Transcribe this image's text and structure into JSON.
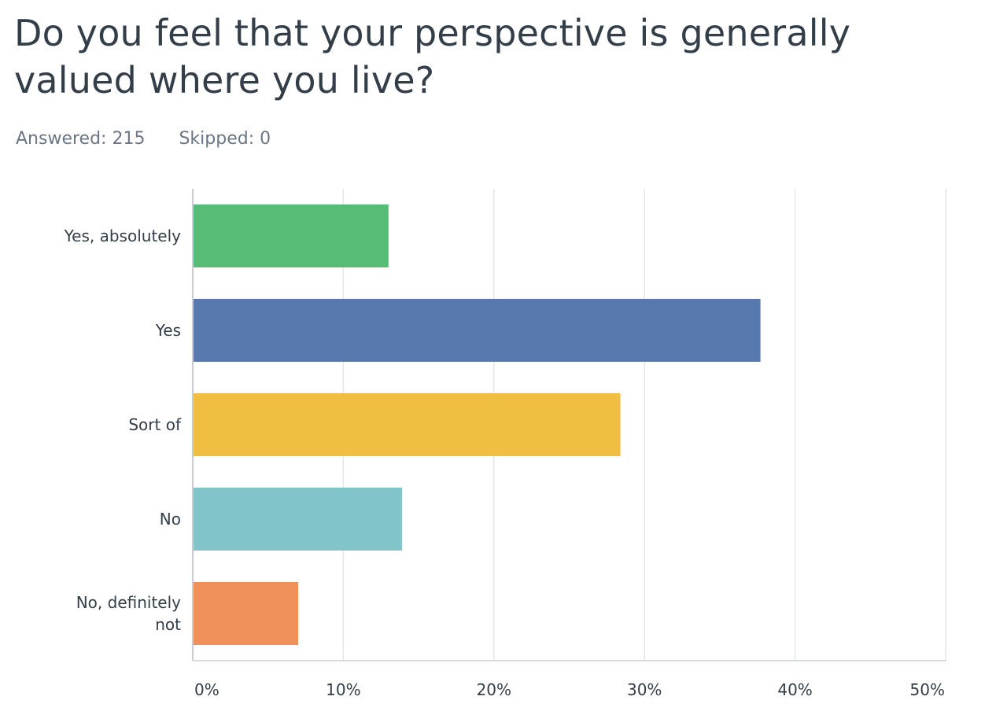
{
  "question": {
    "title": "Do you feel that your perspective is generally valued where you live?"
  },
  "stats": {
    "answered_label": "Answered: 215",
    "skipped_label": "Skipped: 0"
  },
  "chart_data": {
    "type": "bar",
    "orientation": "horizontal",
    "categories": [
      "Yes, absolutely",
      "Yes",
      "Sort of",
      "No",
      "No, definitely not"
    ],
    "category_lines": [
      [
        "Yes, absolutely"
      ],
      [
        "Yes"
      ],
      [
        "Sort of"
      ],
      [
        "No"
      ],
      [
        "No, definitely",
        "not"
      ]
    ],
    "values": [
      13.0,
      37.7,
      28.4,
      13.9,
      7.0
    ],
    "colors": [
      "#57bd76",
      "#5779ae",
      "#f0be41",
      "#81c5ca",
      "#f0905b"
    ],
    "xlim": [
      0,
      50
    ],
    "xticks": [
      0,
      10,
      20,
      30,
      40,
      50
    ],
    "xtick_labels": [
      "0%",
      "10%",
      "20%",
      "30%",
      "40%",
      "50%"
    ],
    "grid": true,
    "grid_color": "#e4e6e8",
    "axis_color": "#c9cdd1"
  }
}
